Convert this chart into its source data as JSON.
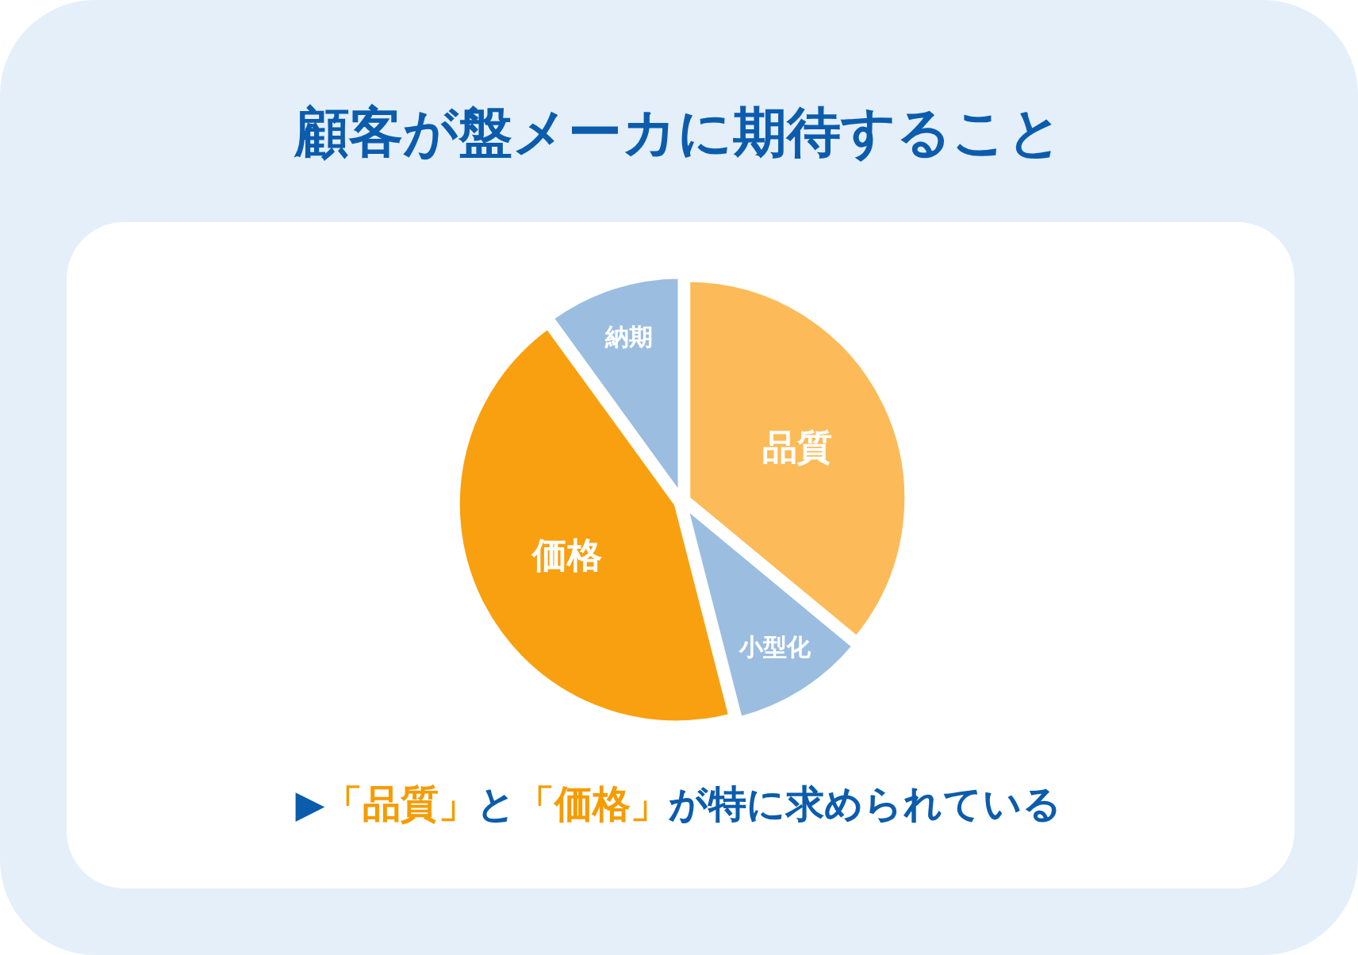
{
  "chart_data": {
    "type": "pie",
    "title": "顧客が盤メーカに期待すること",
    "categories": [
      "品質",
      "小型化",
      "価格",
      "納期"
    ],
    "values": [
      36,
      10,
      44,
      10
    ],
    "colors": [
      "#fcbb58",
      "#9bbde0",
      "#f9a011",
      "#9bbde0"
    ],
    "annotations": [
      "▶「品質」と「価格」が特に求められている"
    ]
  }
}
